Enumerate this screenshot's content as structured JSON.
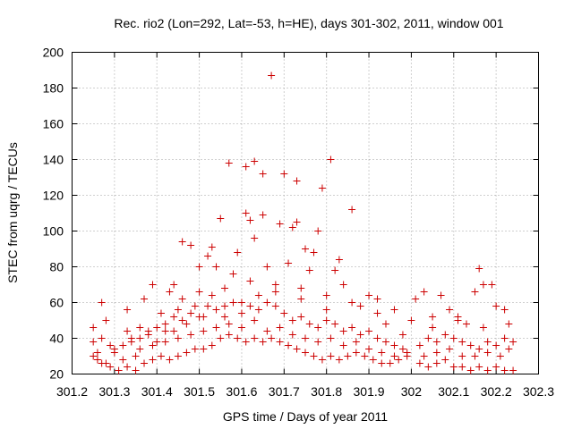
{
  "chart_data": {
    "type": "scatter",
    "title": "Rec. rio2 (Lon=292, Lat=-53, h=HE), days 301-302, 2011, window 001",
    "xlabel": "GPS time / Days of year 2011",
    "ylabel": "STEC from uqrg / TECUs",
    "xlim": [
      301.2,
      302.3
    ],
    "ylim": [
      20,
      200
    ],
    "xticks": [
      "301.2",
      "301.3",
      "301.4",
      "301.5",
      "301.6",
      "301.7",
      "301.8",
      "301.9",
      "302",
      "302.1",
      "302.2",
      "302.3"
    ],
    "yticks": [
      "20",
      "40",
      "60",
      "80",
      "100",
      "120",
      "140",
      "160",
      "180",
      "200"
    ],
    "grid": true,
    "marker": "plus",
    "color": "#cc0000",
    "series": [
      {
        "points": [
          [
            301.25,
            46
          ],
          [
            301.25,
            38
          ],
          [
            301.26,
            32
          ],
          [
            301.27,
            60
          ],
          [
            301.27,
            40
          ],
          [
            301.28,
            50
          ],
          [
            301.29,
            36
          ],
          [
            301.3,
            32
          ],
          [
            301.32,
            28
          ],
          [
            301.33,
            56
          ],
          [
            301.34,
            40
          ],
          [
            301.35,
            30
          ],
          [
            301.36,
            46
          ],
          [
            301.37,
            62
          ],
          [
            301.38,
            42
          ],
          [
            301.39,
            70
          ],
          [
            301.4,
            38
          ],
          [
            301.41,
            54
          ],
          [
            301.42,
            48
          ],
          [
            301.43,
            66
          ],
          [
            301.44,
            44
          ],
          [
            301.45,
            56
          ],
          [
            301.46,
            62
          ],
          [
            301.46,
            94
          ],
          [
            301.47,
            48
          ],
          [
            301.48,
            92
          ],
          [
            301.49,
            58
          ],
          [
            301.5,
            80
          ],
          [
            301.51,
            52
          ],
          [
            301.52,
            86
          ],
          [
            301.53,
            91
          ],
          [
            301.53,
            64
          ],
          [
            301.54,
            80
          ],
          [
            301.55,
            107
          ],
          [
            301.56,
            58
          ],
          [
            301.57,
            138
          ],
          [
            301.58,
            76
          ],
          [
            301.59,
            88
          ],
          [
            301.6,
            60
          ],
          [
            301.61,
            110
          ],
          [
            301.61,
            136
          ],
          [
            301.62,
            106
          ],
          [
            301.63,
            139
          ],
          [
            301.63,
            96
          ],
          [
            301.64,
            64
          ],
          [
            301.65,
            109
          ],
          [
            301.65,
            132
          ],
          [
            301.66,
            80
          ],
          [
            301.67,
            187
          ],
          [
            301.68,
            70
          ],
          [
            301.69,
            104
          ],
          [
            301.7,
            132
          ],
          [
            301.71,
            82
          ],
          [
            301.72,
            102
          ],
          [
            301.73,
            105
          ],
          [
            301.73,
            128
          ],
          [
            301.74,
            68
          ],
          [
            301.75,
            90
          ],
          [
            301.76,
            78
          ],
          [
            301.77,
            88
          ],
          [
            301.78,
            100
          ],
          [
            301.79,
            124
          ],
          [
            301.8,
            56
          ],
          [
            301.81,
            140
          ],
          [
            301.82,
            78
          ],
          [
            301.83,
            84
          ],
          [
            301.84,
            70
          ],
          [
            301.86,
            112
          ],
          [
            301.88,
            58
          ],
          [
            301.9,
            64
          ],
          [
            301.92,
            54
          ],
          [
            301.94,
            48
          ],
          [
            301.96,
            56
          ],
          [
            301.98,
            42
          ],
          [
            302.01,
            62
          ],
          [
            302.03,
            66
          ],
          [
            302.05,
            52
          ],
          [
            302.07,
            64
          ],
          [
            302.09,
            56
          ],
          [
            302.11,
            50
          ],
          [
            302.13,
            48
          ],
          [
            302.15,
            66
          ],
          [
            302.16,
            79
          ],
          [
            302.17,
            70
          ],
          [
            302.19,
            70
          ],
          [
            302.2,
            58
          ],
          [
            302.22,
            56
          ],
          [
            302.23,
            48
          ],
          [
            301.25,
            30
          ],
          [
            301.27,
            26
          ],
          [
            301.29,
            24
          ],
          [
            301.31,
            22
          ],
          [
            301.33,
            24
          ],
          [
            301.35,
            22
          ],
          [
            301.37,
            26
          ],
          [
            301.39,
            28
          ],
          [
            301.41,
            30
          ],
          [
            301.43,
            28
          ],
          [
            301.45,
            30
          ],
          [
            301.47,
            32
          ],
          [
            301.49,
            34
          ],
          [
            301.51,
            34
          ],
          [
            301.53,
            36
          ],
          [
            301.55,
            40
          ],
          [
            301.57,
            42
          ],
          [
            301.59,
            40
          ],
          [
            301.61,
            38
          ],
          [
            301.63,
            40
          ],
          [
            301.65,
            38
          ],
          [
            301.67,
            40
          ],
          [
            301.69,
            38
          ],
          [
            301.71,
            36
          ],
          [
            301.73,
            34
          ],
          [
            301.75,
            32
          ],
          [
            301.77,
            30
          ],
          [
            301.79,
            28
          ],
          [
            301.81,
            30
          ],
          [
            301.83,
            28
          ],
          [
            301.85,
            30
          ],
          [
            301.87,
            32
          ],
          [
            301.89,
            30
          ],
          [
            301.91,
            28
          ],
          [
            301.93,
            26
          ],
          [
            301.95,
            26
          ],
          [
            301.97,
            28
          ],
          [
            301.99,
            30
          ],
          [
            302.02,
            26
          ],
          [
            302.04,
            24
          ],
          [
            302.06,
            26
          ],
          [
            302.08,
            28
          ],
          [
            302.1,
            24
          ],
          [
            302.12,
            24
          ],
          [
            302.14,
            22
          ],
          [
            302.16,
            24
          ],
          [
            302.18,
            22
          ],
          [
            302.2,
            24
          ],
          [
            302.22,
            22
          ],
          [
            302.24,
            22
          ],
          [
            301.26,
            28
          ],
          [
            301.28,
            26
          ],
          [
            301.3,
            34
          ],
          [
            301.32,
            36
          ],
          [
            301.34,
            38
          ],
          [
            301.36,
            40
          ],
          [
            301.38,
            44
          ],
          [
            301.4,
            46
          ],
          [
            301.42,
            44
          ],
          [
            301.44,
            52
          ],
          [
            301.46,
            50
          ],
          [
            301.48,
            54
          ],
          [
            301.5,
            52
          ],
          [
            301.52,
            58
          ],
          [
            301.54,
            56
          ],
          [
            301.56,
            52
          ],
          [
            301.58,
            60
          ],
          [
            301.6,
            54
          ],
          [
            301.62,
            58
          ],
          [
            301.64,
            56
          ],
          [
            301.66,
            60
          ],
          [
            301.68,
            58
          ],
          [
            301.7,
            54
          ],
          [
            301.72,
            50
          ],
          [
            301.74,
            52
          ],
          [
            301.76,
            48
          ],
          [
            301.78,
            46
          ],
          [
            301.8,
            50
          ],
          [
            301.82,
            48
          ],
          [
            301.84,
            44
          ],
          [
            301.86,
            46
          ],
          [
            301.88,
            42
          ],
          [
            301.9,
            44
          ],
          [
            301.92,
            40
          ],
          [
            301.94,
            38
          ],
          [
            301.96,
            36
          ],
          [
            301.98,
            34
          ],
          [
            302.02,
            36
          ],
          [
            302.04,
            40
          ],
          [
            302.06,
            38
          ],
          [
            302.08,
            42
          ],
          [
            302.1,
            40
          ],
          [
            302.12,
            38
          ],
          [
            302.14,
            36
          ],
          [
            302.16,
            34
          ],
          [
            302.18,
            38
          ],
          [
            302.2,
            36
          ],
          [
            302.22,
            40
          ],
          [
            302.24,
            38
          ],
          [
            301.33,
            44
          ],
          [
            301.36,
            34
          ],
          [
            301.39,
            36
          ],
          [
            301.42,
            38
          ],
          [
            301.45,
            40
          ],
          [
            301.48,
            42
          ],
          [
            301.51,
            44
          ],
          [
            301.54,
            46
          ],
          [
            301.57,
            48
          ],
          [
            301.6,
            46
          ],
          [
            301.63,
            50
          ],
          [
            301.66,
            44
          ],
          [
            301.69,
            46
          ],
          [
            301.72,
            42
          ],
          [
            301.75,
            40
          ],
          [
            301.78,
            38
          ],
          [
            301.81,
            40
          ],
          [
            301.84,
            36
          ],
          [
            301.87,
            38
          ],
          [
            301.9,
            34
          ],
          [
            301.93,
            32
          ],
          [
            301.96,
            30
          ],
          [
            301.99,
            32
          ],
          [
            302.03,
            30
          ],
          [
            302.06,
            32
          ],
          [
            302.09,
            34
          ],
          [
            302.12,
            30
          ],
          [
            302.15,
            30
          ],
          [
            302.18,
            32
          ],
          [
            302.21,
            30
          ],
          [
            301.44,
            70
          ],
          [
            301.5,
            66
          ],
          [
            301.56,
            68
          ],
          [
            301.62,
            72
          ],
          [
            301.68,
            66
          ],
          [
            301.74,
            62
          ],
          [
            301.8,
            64
          ],
          [
            301.86,
            60
          ],
          [
            301.92,
            62
          ],
          [
            302.0,
            50
          ],
          [
            302.05,
            46
          ],
          [
            302.11,
            52
          ],
          [
            302.17,
            46
          ],
          [
            302.23,
            34
          ]
        ]
      }
    ]
  }
}
